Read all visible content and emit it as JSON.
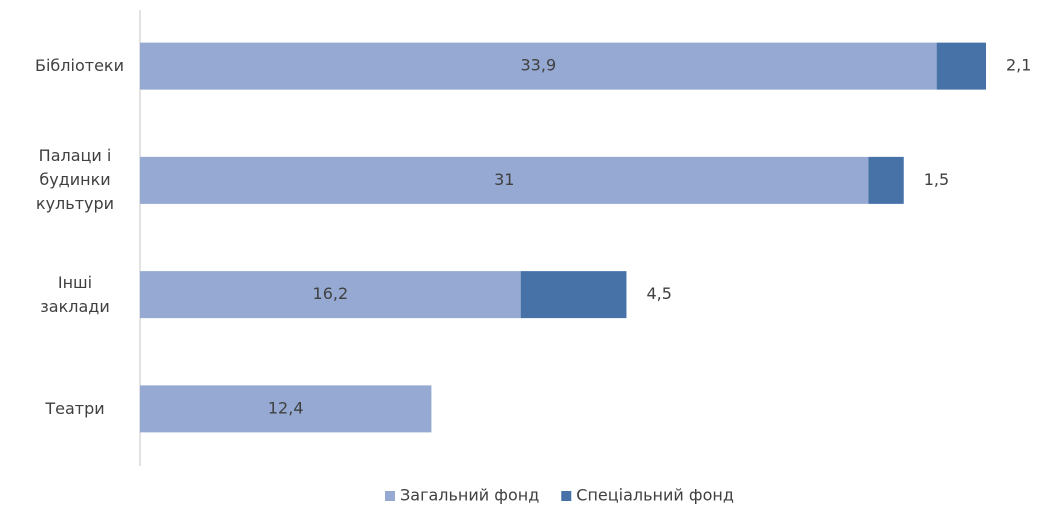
{
  "chart_data": {
    "type": "stacked-bar-horizontal",
    "categories": [
      "Бібліотеки",
      "Палаци і будинки культури",
      "Інші заклади",
      "Театри"
    ],
    "series": [
      {
        "name": "Загальний фонд",
        "color": "#95a9d2",
        "values": [
          33.9,
          31,
          16.2,
          12.4
        ],
        "value_labels": [
          "33,9",
          "31",
          "16,2",
          "12,4"
        ]
      },
      {
        "name": "Спеціальний фонд",
        "color": "#4672a8",
        "values": [
          2.1,
          1.5,
          4.5,
          null
        ],
        "value_labels": [
          "2,1",
          "1,5",
          "4,5",
          null
        ]
      }
    ],
    "xlim": [
      0,
      38
    ],
    "legend": "bottom"
  }
}
